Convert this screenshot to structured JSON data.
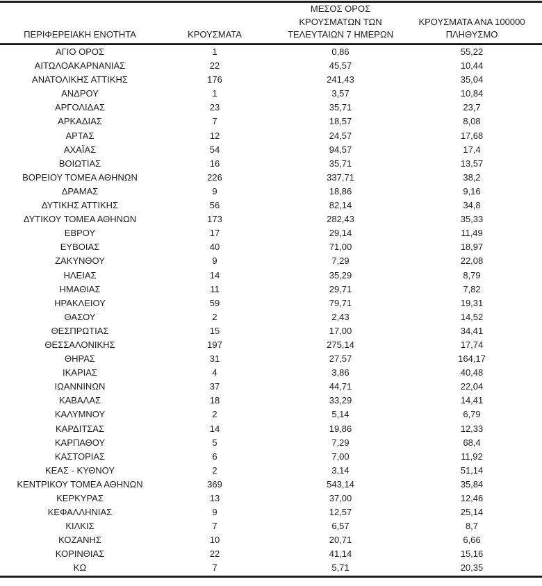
{
  "table": {
    "columns": [
      {
        "label": "ΠΕΡΙΦΕΡΕΙΑΚΗ ΕΝΟΤΗΤΑ"
      },
      {
        "label": "ΚΡΟΥΣΜΑΤΑ"
      },
      {
        "label": "ΜΕΣΟΣ ΟΡΟΣ\nΚΡΟΥΣΜΑΤΩΝ ΤΩΝ\nΤΕΛΕΥΤΑΙΩΝ 7 ΗΜΕΡΩΝ"
      },
      {
        "label": "ΚΡΟΥΣΜΑΤΑ ΑΝΑ 100000\nΠΛΗΘΥΣΜΟ"
      }
    ],
    "rows": [
      [
        "ΑΓΙΟ ΟΡΟΣ",
        "1",
        "0,86",
        "55,22"
      ],
      [
        "ΑΙΤΩΛΟΑΚΑΡΝΑΝΙΑΣ",
        "22",
        "45,57",
        "10,44"
      ],
      [
        "ΑΝΑΤΟΛΙΚΗΣ ΑΤΤΙΚΗΣ",
        "176",
        "241,43",
        "35,04"
      ],
      [
        "ΑΝΔΡΟΥ",
        "1",
        "3,57",
        "10,84"
      ],
      [
        "ΑΡΓΟΛΙΔΑΣ",
        "23",
        "35,71",
        "23,7"
      ],
      [
        "ΑΡΚΑΔΙΑΣ",
        "7",
        "18,57",
        "8,08"
      ],
      [
        "ΑΡΤΑΣ",
        "12",
        "24,57",
        "17,68"
      ],
      [
        "ΑΧΑΪΑΣ",
        "54",
        "94,57",
        "17,4"
      ],
      [
        "ΒΟΙΩΤΙΑΣ",
        "16",
        "35,71",
        "13,57"
      ],
      [
        "ΒΟΡΕΙΟΥ ΤΟΜΕΑ ΑΘΗΝΩΝ",
        "226",
        "337,71",
        "38,2"
      ],
      [
        "ΔΡΑΜΑΣ",
        "9",
        "18,86",
        "9,16"
      ],
      [
        "ΔΥΤΙΚΗΣ ΑΤΤΙΚΗΣ",
        "56",
        "82,14",
        "34,8"
      ],
      [
        "ΔΥΤΙΚΟΥ ΤΟΜΕΑ ΑΘΗΝΩΝ",
        "173",
        "282,43",
        "35,33"
      ],
      [
        "ΕΒΡΟΥ",
        "17",
        "29,14",
        "11,49"
      ],
      [
        "ΕΥΒΟΙΑΣ",
        "40",
        "71,00",
        "18,97"
      ],
      [
        "ΖΑΚΥΝΘΟΥ",
        "9",
        "7,29",
        "22,08"
      ],
      [
        "ΗΛΕΙΑΣ",
        "14",
        "35,29",
        "8,79"
      ],
      [
        "ΗΜΑΘΙΑΣ",
        "11",
        "29,71",
        "7,82"
      ],
      [
        "ΗΡΑΚΛΕΙΟΥ",
        "59",
        "79,71",
        "19,31"
      ],
      [
        "ΘΑΣΟΥ",
        "2",
        "2,43",
        "14,52"
      ],
      [
        "ΘΕΣΠΡΩΤΙΑΣ",
        "15",
        "17,00",
        "34,41"
      ],
      [
        "ΘΕΣΣΑΛΟΝΙΚΗΣ",
        "197",
        "275,14",
        "17,74"
      ],
      [
        "ΘΗΡΑΣ",
        "31",
        "27,57",
        "164,17"
      ],
      [
        "ΙΚΑΡΙΑΣ",
        "4",
        "3,86",
        "40,48"
      ],
      [
        "ΙΩΑΝΝΙΝΩΝ",
        "37",
        "44,71",
        "22,04"
      ],
      [
        "ΚΑΒΑΛΑΣ",
        "18",
        "33,29",
        "14,41"
      ],
      [
        "ΚΑΛΥΜΝΟΥ",
        "2",
        "5,14",
        "6,79"
      ],
      [
        "ΚΑΡΔΙΤΣΑΣ",
        "14",
        "19,86",
        "12,33"
      ],
      [
        "ΚΑΡΠΑΘΟΥ",
        "5",
        "7,29",
        "68,4"
      ],
      [
        "ΚΑΣΤΟΡΙΑΣ",
        "6",
        "7,00",
        "11,92"
      ],
      [
        "ΚΕΑΣ - ΚΥΘΝΟΥ",
        "2",
        "3,14",
        "51,14"
      ],
      [
        "ΚΕΝΤΡΙΚΟΥ ΤΟΜΕΑ ΑΘΗΝΩΝ",
        "369",
        "543,14",
        "35,84"
      ],
      [
        "ΚΕΡΚΥΡΑΣ",
        "13",
        "37,00",
        "12,46"
      ],
      [
        "ΚΕΦΑΛΛΗΝΙΑΣ",
        "9",
        "12,57",
        "25,14"
      ],
      [
        "ΚΙΛΚΙΣ",
        "7",
        "6,57",
        "8,7"
      ],
      [
        "ΚΟΖΑΝΗΣ",
        "10",
        "20,71",
        "6,66"
      ],
      [
        "ΚΟΡΙΝΘΙΑΣ",
        "22",
        "41,14",
        "15,16"
      ],
      [
        "ΚΩ",
        "7",
        "5,71",
        "20,35"
      ]
    ]
  },
  "colors": {
    "background": "#ffffff",
    "text": "#1d1d1d",
    "rule_thin": "#3a3a3a",
    "rule_thick": "#141414"
  }
}
